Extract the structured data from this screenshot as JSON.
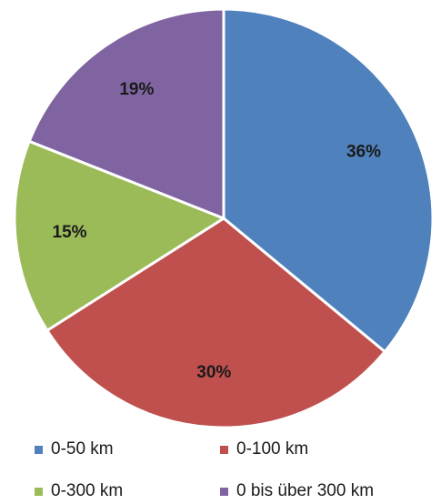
{
  "chart_data": {
    "type": "pie",
    "categories": [
      "0-50 km",
      "0-100 km",
      "0-300 km",
      "0 bis über 300 km"
    ],
    "values": [
      36,
      30,
      15,
      19
    ],
    "labels": [
      "36%",
      "30%",
      "15%",
      "19%"
    ],
    "colors": [
      "#4f81bd",
      "#c0504d",
      "#9bbb59",
      "#8064a2"
    ],
    "start_angle_deg": 0,
    "direction": "clockwise",
    "legend_position": "bottom"
  }
}
